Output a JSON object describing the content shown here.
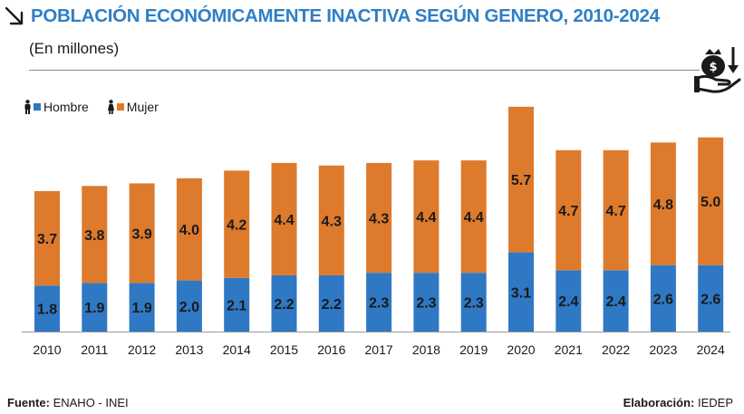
{
  "header": {
    "title": "POBLACIÓN ECONÓMICAMENTE INACTIVA SEGÚN GENERO, 2010-2024",
    "subtitle": "(En millones)"
  },
  "icons": {
    "arrow": "arrow-down-right-icon",
    "money": "money-bag-hand-icon",
    "person": "person-icon"
  },
  "colors": {
    "title": "#2f7fc5",
    "hombre": "#2f78c4",
    "mujer": "#de7a2c",
    "label": "#1a1a1a"
  },
  "footer": {
    "source_label": "Fuente:",
    "source_value": "ENAHO - INEI",
    "credit_label": "Elaboración:",
    "credit_value": "IEDEP"
  },
  "chart_data": {
    "type": "bar",
    "stacked": true,
    "title": "POBLACIÓN ECONÓMICAMENTE INACTIVA SEGÚN GENERO, 2010-2024",
    "subtitle": "(En millones)",
    "xlabel": "",
    "ylabel": "",
    "categories": [
      "2010",
      "2011",
      "2012",
      "2013",
      "2014",
      "2015",
      "2016",
      "2017",
      "2018",
      "2019",
      "2020",
      "2021",
      "2022",
      "2023",
      "2024"
    ],
    "series": [
      {
        "name": "Hombre",
        "color": "#2f78c4",
        "values": [
          1.8,
          1.9,
          1.9,
          2.0,
          2.1,
          2.2,
          2.2,
          2.3,
          2.3,
          2.3,
          3.1,
          2.4,
          2.4,
          2.6,
          2.6
        ]
      },
      {
        "name": "Mujer",
        "color": "#de7a2c",
        "values": [
          3.7,
          3.8,
          3.9,
          4.0,
          4.2,
          4.4,
          4.3,
          4.3,
          4.4,
          4.4,
          5.7,
          4.7,
          4.7,
          4.8,
          5.0
        ]
      }
    ],
    "value_labels": {
      "Hombre": [
        "1.8",
        "1.9",
        "1.9",
        "2.0",
        "2.1",
        "2.2",
        "2.2",
        "2.3",
        "2.3",
        "2.3",
        "3.1",
        "2.4",
        "2.4",
        "2.6",
        "2.6"
      ],
      "Mujer": [
        "3.7",
        "3.8",
        "3.9",
        "4.0",
        "4.2",
        "4.4",
        "4.3",
        "4.3",
        "4.4",
        "4.4",
        "5.7",
        "4.7",
        "4.7",
        "4.8",
        "5.0"
      ]
    },
    "ylim": [
      0,
      9
    ],
    "grid": false,
    "legend_position": "top-left"
  }
}
